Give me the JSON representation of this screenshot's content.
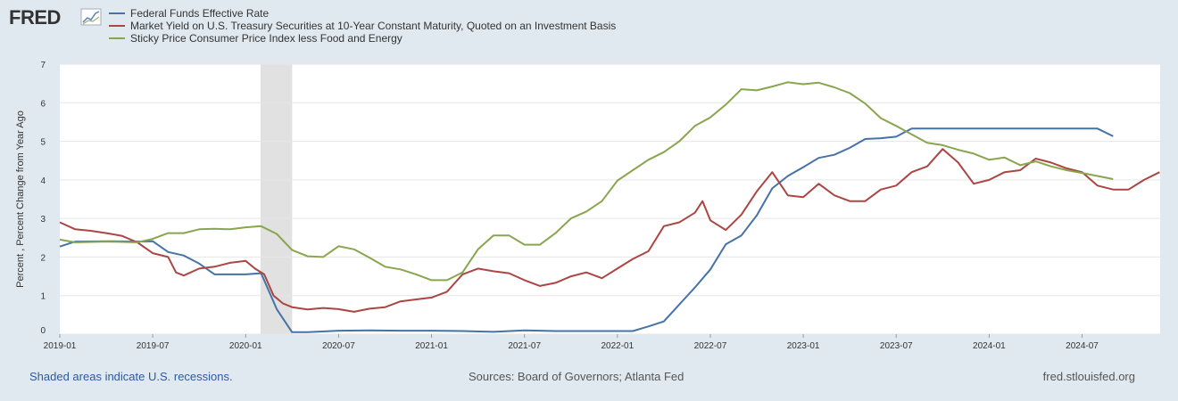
{
  "logo": {
    "text": "FRED"
  },
  "footer": {
    "recession_note": "Shaded areas indicate U.S. recessions.",
    "sources": "Sources: Board of Governors; Atlanta Fed",
    "site": "fred.stlouisfed.org"
  },
  "colors": {
    "background": "#e1e9f0",
    "plot": "#ffffff",
    "grid": "#e6e6e6",
    "recession": "#e1e1e1"
  },
  "chart_data": {
    "type": "line",
    "title": "",
    "xlabel": "",
    "ylabel": "Percent , Percent Change from Year Ago",
    "ylim": [
      0,
      7
    ],
    "xlim": [
      2019.0,
      2024.92
    ],
    "yticks": [
      "0",
      "1",
      "2",
      "3",
      "4",
      "5",
      "6",
      "7"
    ],
    "xticks": [
      {
        "label": "2019-01",
        "x": 2019.0
      },
      {
        "label": "2019-07",
        "x": 2019.5
      },
      {
        "label": "2020-01",
        "x": 2020.0
      },
      {
        "label": "2020-07",
        "x": 2020.5
      },
      {
        "label": "2021-01",
        "x": 2021.0
      },
      {
        "label": "2021-07",
        "x": 2021.5
      },
      {
        "label": "2022-01",
        "x": 2022.0
      },
      {
        "label": "2022-07",
        "x": 2022.5
      },
      {
        "label": "2023-01",
        "x": 2023.0
      },
      {
        "label": "2023-07",
        "x": 2023.5
      },
      {
        "label": "2024-01",
        "x": 2024.0
      },
      {
        "label": "2024-07",
        "x": 2024.5
      }
    ],
    "recessions": [
      {
        "start": 2020.08,
        "end": 2020.25
      }
    ],
    "series": [
      {
        "name": "Federal Funds Effective Rate",
        "color": "#4572a7",
        "points": [
          [
            2019.0,
            2.27
          ],
          [
            2019.083,
            2.4
          ],
          [
            2019.25,
            2.41
          ],
          [
            2019.417,
            2.4
          ],
          [
            2019.5,
            2.41
          ],
          [
            2019.583,
            2.13
          ],
          [
            2019.667,
            2.04
          ],
          [
            2019.75,
            1.83
          ],
          [
            2019.833,
            1.55
          ],
          [
            2020.0,
            1.55
          ],
          [
            2020.083,
            1.58
          ],
          [
            2020.167,
            0.65
          ],
          [
            2020.25,
            0.05
          ],
          [
            2020.333,
            0.05
          ],
          [
            2020.5,
            0.09
          ],
          [
            2020.667,
            0.1
          ],
          [
            2020.833,
            0.09
          ],
          [
            2021.0,
            0.09
          ],
          [
            2021.167,
            0.08
          ],
          [
            2021.333,
            0.06
          ],
          [
            2021.5,
            0.1
          ],
          [
            2021.667,
            0.08
          ],
          [
            2021.833,
            0.08
          ],
          [
            2022.0,
            0.08
          ],
          [
            2022.083,
            0.08
          ],
          [
            2022.167,
            0.2
          ],
          [
            2022.25,
            0.33
          ],
          [
            2022.333,
            0.77
          ],
          [
            2022.417,
            1.21
          ],
          [
            2022.5,
            1.68
          ],
          [
            2022.583,
            2.33
          ],
          [
            2022.667,
            2.56
          ],
          [
            2022.75,
            3.08
          ],
          [
            2022.833,
            3.78
          ],
          [
            2022.917,
            4.1
          ],
          [
            2023.0,
            4.33
          ],
          [
            2023.083,
            4.57
          ],
          [
            2023.167,
            4.65
          ],
          [
            2023.25,
            4.83
          ],
          [
            2023.333,
            5.06
          ],
          [
            2023.417,
            5.08
          ],
          [
            2023.5,
            5.12
          ],
          [
            2023.583,
            5.33
          ],
          [
            2023.75,
            5.33
          ],
          [
            2024.0,
            5.33
          ],
          [
            2024.25,
            5.33
          ],
          [
            2024.5,
            5.33
          ],
          [
            2024.583,
            5.33
          ],
          [
            2024.667,
            5.13
          ]
        ]
      },
      {
        "name": "Market Yield on U.S. Treasury Securities at 10-Year Constant Maturity, Quoted on an Investment Basis",
        "color": "#aa4643",
        "points": [
          [
            2019.0,
            2.9
          ],
          [
            2019.083,
            2.72
          ],
          [
            2019.167,
            2.68
          ],
          [
            2019.25,
            2.62
          ],
          [
            2019.333,
            2.55
          ],
          [
            2019.417,
            2.38
          ],
          [
            2019.5,
            2.1
          ],
          [
            2019.583,
            2.0
          ],
          [
            2019.625,
            1.6
          ],
          [
            2019.667,
            1.52
          ],
          [
            2019.75,
            1.7
          ],
          [
            2019.833,
            1.75
          ],
          [
            2019.917,
            1.85
          ],
          [
            2020.0,
            1.9
          ],
          [
            2020.05,
            1.7
          ],
          [
            2020.1,
            1.55
          ],
          [
            2020.15,
            1.0
          ],
          [
            2020.2,
            0.8
          ],
          [
            2020.25,
            0.7
          ],
          [
            2020.333,
            0.64
          ],
          [
            2020.417,
            0.68
          ],
          [
            2020.5,
            0.65
          ],
          [
            2020.583,
            0.58
          ],
          [
            2020.667,
            0.66
          ],
          [
            2020.75,
            0.7
          ],
          [
            2020.833,
            0.85
          ],
          [
            2020.917,
            0.9
          ],
          [
            2021.0,
            0.95
          ],
          [
            2021.083,
            1.1
          ],
          [
            2021.167,
            1.55
          ],
          [
            2021.25,
            1.7
          ],
          [
            2021.333,
            1.63
          ],
          [
            2021.417,
            1.58
          ],
          [
            2021.5,
            1.4
          ],
          [
            2021.583,
            1.25
          ],
          [
            2021.667,
            1.33
          ],
          [
            2021.75,
            1.5
          ],
          [
            2021.833,
            1.6
          ],
          [
            2021.917,
            1.45
          ],
          [
            2022.0,
            1.7
          ],
          [
            2022.083,
            1.95
          ],
          [
            2022.167,
            2.15
          ],
          [
            2022.25,
            2.8
          ],
          [
            2022.333,
            2.9
          ],
          [
            2022.417,
            3.15
          ],
          [
            2022.458,
            3.45
          ],
          [
            2022.5,
            2.95
          ],
          [
            2022.583,
            2.7
          ],
          [
            2022.667,
            3.1
          ],
          [
            2022.75,
            3.7
          ],
          [
            2022.833,
            4.2
          ],
          [
            2022.875,
            3.9
          ],
          [
            2022.917,
            3.6
          ],
          [
            2023.0,
            3.55
          ],
          [
            2023.083,
            3.9
          ],
          [
            2023.167,
            3.6
          ],
          [
            2023.25,
            3.45
          ],
          [
            2023.333,
            3.45
          ],
          [
            2023.417,
            3.75
          ],
          [
            2023.5,
            3.85
          ],
          [
            2023.583,
            4.2
          ],
          [
            2023.667,
            4.35
          ],
          [
            2023.75,
            4.8
          ],
          [
            2023.833,
            4.45
          ],
          [
            2023.917,
            3.9
          ],
          [
            2024.0,
            4.0
          ],
          [
            2024.083,
            4.2
          ],
          [
            2024.167,
            4.25
          ],
          [
            2024.25,
            4.55
          ],
          [
            2024.333,
            4.45
          ],
          [
            2024.417,
            4.3
          ],
          [
            2024.5,
            4.2
          ],
          [
            2024.583,
            3.85
          ],
          [
            2024.667,
            3.75
          ],
          [
            2024.75,
            3.75
          ],
          [
            2024.833,
            4.0
          ],
          [
            2024.917,
            4.2
          ]
        ]
      },
      {
        "name": "Sticky Price Consumer Price Index less Food and Energy",
        "color": "#89a54e",
        "points": [
          [
            2019.0,
            2.45
          ],
          [
            2019.083,
            2.38
          ],
          [
            2019.25,
            2.4
          ],
          [
            2019.417,
            2.38
          ],
          [
            2019.5,
            2.47
          ],
          [
            2019.583,
            2.62
          ],
          [
            2019.667,
            2.62
          ],
          [
            2019.75,
            2.72
          ],
          [
            2019.833,
            2.73
          ],
          [
            2019.917,
            2.72
          ],
          [
            2020.0,
            2.77
          ],
          [
            2020.083,
            2.8
          ],
          [
            2020.167,
            2.6
          ],
          [
            2020.25,
            2.18
          ],
          [
            2020.333,
            2.02
          ],
          [
            2020.417,
            2.0
          ],
          [
            2020.5,
            2.28
          ],
          [
            2020.583,
            2.2
          ],
          [
            2020.667,
            1.98
          ],
          [
            2020.75,
            1.75
          ],
          [
            2020.833,
            1.68
          ],
          [
            2020.917,
            1.55
          ],
          [
            2021.0,
            1.4
          ],
          [
            2021.083,
            1.4
          ],
          [
            2021.167,
            1.6
          ],
          [
            2021.25,
            2.2
          ],
          [
            2021.333,
            2.56
          ],
          [
            2021.417,
            2.56
          ],
          [
            2021.5,
            2.32
          ],
          [
            2021.583,
            2.32
          ],
          [
            2021.667,
            2.62
          ],
          [
            2021.75,
            3.0
          ],
          [
            2021.833,
            3.18
          ],
          [
            2021.917,
            3.45
          ],
          [
            2022.0,
            3.98
          ],
          [
            2022.083,
            4.25
          ],
          [
            2022.167,
            4.52
          ],
          [
            2022.25,
            4.72
          ],
          [
            2022.333,
            5.0
          ],
          [
            2022.417,
            5.4
          ],
          [
            2022.5,
            5.62
          ],
          [
            2022.583,
            5.95
          ],
          [
            2022.667,
            6.35
          ],
          [
            2022.75,
            6.32
          ],
          [
            2022.833,
            6.42
          ],
          [
            2022.917,
            6.53
          ],
          [
            2023.0,
            6.48
          ],
          [
            2023.083,
            6.52
          ],
          [
            2023.167,
            6.4
          ],
          [
            2023.25,
            6.25
          ],
          [
            2023.333,
            5.98
          ],
          [
            2023.417,
            5.6
          ],
          [
            2023.5,
            5.4
          ],
          [
            2023.583,
            5.18
          ],
          [
            2023.667,
            4.96
          ],
          [
            2023.75,
            4.9
          ],
          [
            2023.833,
            4.78
          ],
          [
            2023.917,
            4.68
          ],
          [
            2024.0,
            4.52
          ],
          [
            2024.083,
            4.58
          ],
          [
            2024.167,
            4.38
          ],
          [
            2024.25,
            4.48
          ],
          [
            2024.333,
            4.35
          ],
          [
            2024.417,
            4.25
          ],
          [
            2024.5,
            4.18
          ],
          [
            2024.583,
            4.1
          ],
          [
            2024.667,
            4.02
          ]
        ]
      }
    ]
  }
}
